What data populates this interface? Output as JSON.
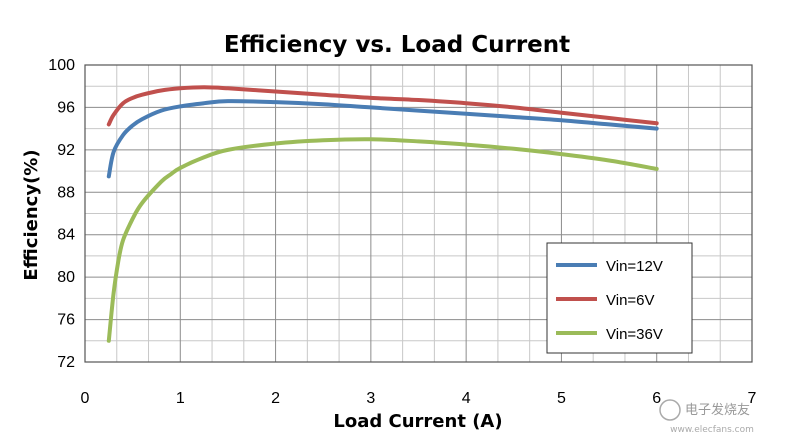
{
  "chart_data": {
    "type": "line",
    "title": "Efficiency vs. Load Current",
    "xlabel": "Load Current (A)",
    "ylabel": "Efficiency(%)",
    "xlim": [
      0,
      7
    ],
    "ylim": [
      72,
      100
    ],
    "xticks": [
      0,
      1,
      2,
      3,
      4,
      5,
      6,
      7
    ],
    "yticks": [
      72,
      76,
      80,
      84,
      88,
      92,
      96,
      100
    ],
    "grid": true,
    "legend_position": "bottom-right",
    "series": [
      {
        "name": "Vin=12V",
        "color": "#4a7db4",
        "x": [
          0.25,
          0.3,
          0.4,
          0.5,
          0.6,
          0.8,
          1.0,
          1.25,
          1.5,
          2.0,
          2.5,
          3.0,
          3.5,
          4.0,
          4.5,
          5.0,
          5.5,
          6.0
        ],
        "y": [
          89.5,
          91.8,
          93.4,
          94.3,
          94.9,
          95.7,
          96.1,
          96.4,
          96.6,
          96.5,
          96.3,
          96.0,
          95.7,
          95.4,
          95.1,
          94.8,
          94.4,
          94.0
        ]
      },
      {
        "name": "Vin=6V",
        "color": "#c0504d",
        "x": [
          0.25,
          0.3,
          0.4,
          0.5,
          0.6,
          0.8,
          1.0,
          1.25,
          1.5,
          2.0,
          2.5,
          3.0,
          3.5,
          4.0,
          4.5,
          5.0,
          5.5,
          6.0
        ],
        "y": [
          94.4,
          95.3,
          96.4,
          96.9,
          97.2,
          97.6,
          97.8,
          97.9,
          97.8,
          97.5,
          97.2,
          96.9,
          96.7,
          96.4,
          96.0,
          95.5,
          95.0,
          94.5
        ]
      },
      {
        "name": "Vin=36V",
        "color": "#9bbb59",
        "x": [
          0.25,
          0.3,
          0.35,
          0.4,
          0.5,
          0.6,
          0.8,
          0.9,
          1.0,
          1.25,
          1.5,
          2.0,
          2.5,
          3.0,
          3.5,
          4.0,
          4.5,
          5.0,
          5.5,
          6.0
        ],
        "y": [
          74.0,
          78.5,
          81.5,
          83.5,
          85.5,
          87.0,
          89.0,
          89.7,
          90.3,
          91.3,
          92.0,
          92.6,
          92.9,
          93.0,
          92.8,
          92.5,
          92.1,
          91.6,
          91.0,
          90.2
        ]
      }
    ]
  },
  "watermark": {
    "name": "电子发烧友",
    "url": "www.elecfans.com"
  }
}
